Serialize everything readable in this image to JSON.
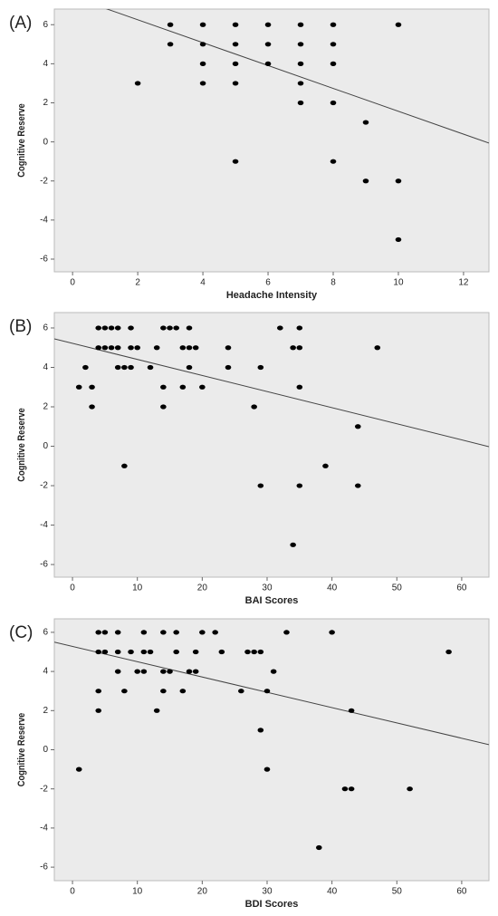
{
  "chart_data": [
    {
      "type": "scatter",
      "panel_label": "(A)",
      "x_label": "Headache Intensity",
      "y_label": "Cognitive Reserve",
      "color": "#000000",
      "x": [
        2,
        3,
        3,
        4,
        4,
        4,
        4,
        5,
        5,
        5,
        5,
        5,
        6,
        6,
        6,
        7,
        7,
        7,
        7,
        7,
        8,
        8,
        8,
        8,
        8,
        9,
        9,
        10,
        10,
        10
      ],
      "values": [
        3,
        6,
        5,
        6,
        5,
        4,
        3,
        6,
        5,
        4,
        3,
        -1,
        6,
        5,
        4,
        6,
        5,
        4,
        3,
        2,
        6,
        5,
        4,
        2,
        -1,
        1,
        -2,
        6,
        -2,
        -5
      ],
      "fit": {
        "x": [
          -0.56,
          12.78
        ],
        "values": [
          7.75,
          -0.06
        ]
      },
      "xlim": [
        -0.56,
        12.78
      ],
      "ylim": [
        -6.65,
        6.8
      ],
      "xticks": [
        0,
        2,
        4,
        6,
        8,
        10,
        12
      ],
      "yticks": [
        -6,
        -4,
        -2,
        0,
        2,
        4,
        6
      ]
    },
    {
      "type": "scatter",
      "panel_label": "(B)",
      "x_label": "BAI Scores",
      "y_label": "Cognitive Reserve",
      "color": "#000000",
      "x": [
        4,
        5,
        6,
        7,
        9,
        14,
        15,
        16,
        18,
        32,
        35,
        4,
        5,
        6,
        7,
        9,
        10,
        13,
        17,
        18,
        19,
        24,
        34,
        35,
        47,
        2,
        7,
        8,
        9,
        12,
        18,
        24,
        29,
        1,
        3,
        14,
        17,
        20,
        35,
        3,
        14,
        28,
        44,
        8,
        39,
        29,
        35,
        44,
        34
      ],
      "values": [
        6,
        6,
        6,
        6,
        6,
        6,
        6,
        6,
        6,
        6,
        6,
        5,
        5,
        5,
        5,
        5,
        5,
        5,
        5,
        5,
        5,
        5,
        5,
        5,
        5,
        4,
        4,
        4,
        4,
        4,
        4,
        4,
        4,
        3,
        3,
        3,
        3,
        3,
        3,
        2,
        2,
        2,
        1,
        -1,
        -1,
        -2,
        -2,
        -2,
        -5
      ],
      "fit": {
        "x": [
          -2.8,
          64.2
        ],
        "values": [
          5.45,
          -0.02
        ]
      },
      "xlim": [
        -2.8,
        64.2
      ],
      "ylim": [
        -6.64,
        6.78
      ],
      "xticks": [
        0,
        10,
        20,
        30,
        40,
        50,
        60
      ],
      "yticks": [
        -6,
        -4,
        -2,
        0,
        2,
        4,
        6
      ]
    },
    {
      "type": "scatter",
      "panel_label": "(C)",
      "x_label": "BDI Scores",
      "y_label": "Cognitive Reserve",
      "color": "#000000",
      "x": [
        4,
        5,
        7,
        11,
        14,
        16,
        20,
        22,
        33,
        40,
        4,
        5,
        7,
        9,
        11,
        12,
        16,
        19,
        23,
        27,
        28,
        29,
        58,
        7,
        10,
        11,
        14,
        15,
        18,
        19,
        31,
        4,
        8,
        14,
        17,
        26,
        30,
        4,
        13,
        43,
        29,
        1,
        30,
        42,
        43,
        52,
        38
      ],
      "values": [
        6,
        6,
        6,
        6,
        6,
        6,
        6,
        6,
        6,
        6,
        5,
        5,
        5,
        5,
        5,
        5,
        5,
        5,
        5,
        5,
        5,
        5,
        5,
        4,
        4,
        4,
        4,
        4,
        4,
        4,
        4,
        3,
        3,
        3,
        3,
        3,
        3,
        2,
        2,
        2,
        1,
        -1,
        -1,
        -2,
        -2,
        -2,
        -5
      ],
      "fit": {
        "x": [
          -2.8,
          64.2
        ],
        "values": [
          5.5,
          0.26
        ]
      },
      "xlim": [
        -2.8,
        64.2
      ],
      "ylim": [
        -6.69,
        6.69
      ],
      "xticks": [
        0,
        10,
        20,
        30,
        40,
        50,
        60
      ],
      "yticks": [
        -6,
        -4,
        -2,
        0,
        2,
        4,
        6
      ]
    }
  ]
}
